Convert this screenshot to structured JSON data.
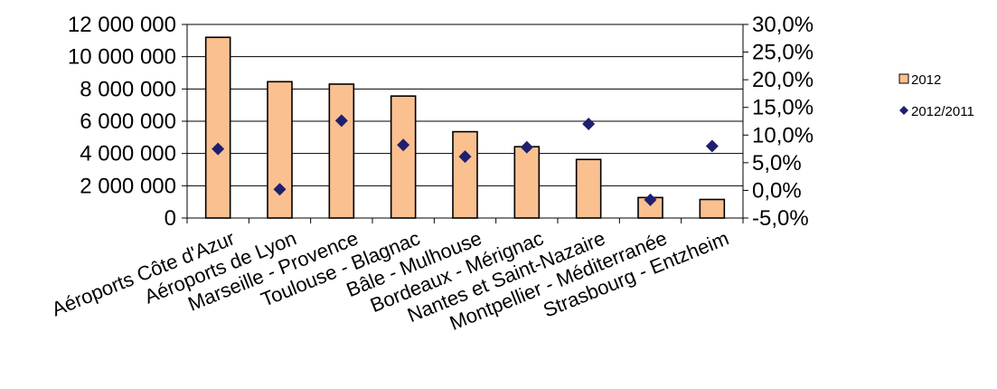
{
  "chart_data": {
    "type": "bar",
    "categories": [
      "Aéroports Côte d'Azur",
      "Aéroports de Lyon",
      "Marseille - Provence",
      "Toulouse - Blagnac",
      "Bâle - Mulhouse",
      "Bordeaux - Mérignac",
      "Nantes et Saint-Nazaire",
      "Montpellier - Méditerranée",
      "Strasbourg - Entzheim"
    ],
    "series": [
      {
        "name": "2012",
        "type": "bar",
        "axis": "left",
        "color": "#FAC090",
        "values": [
          11200000,
          8450000,
          8300000,
          7560000,
          5350000,
          4420000,
          3630000,
          1270000,
          1150000
        ]
      },
      {
        "name": "2012/2011",
        "type": "scatter",
        "axis": "right",
        "marker": "diamond",
        "color": "#1F1F6E",
        "values": [
          7.5,
          0.2,
          12.6,
          8.2,
          6.1,
          7.8,
          12.0,
          -1.7,
          8.0
        ]
      }
    ],
    "y_left": {
      "ylim": [
        0,
        12000000
      ],
      "ticks": [
        0,
        2000000,
        4000000,
        6000000,
        8000000,
        10000000,
        12000000
      ],
      "tick_labels": [
        "0",
        "2 000 000",
        "4 000 000",
        "6 000 000",
        "8 000 000",
        "10 000 000",
        "12 000 000"
      ]
    },
    "y_right": {
      "ylim": [
        -5,
        30
      ],
      "ticks": [
        -5,
        0,
        5,
        10,
        15,
        20,
        25,
        30
      ],
      "tick_labels": [
        "-5,0%",
        "0,0%",
        "5,0%",
        "10,0%",
        "15,0%",
        "20,0%",
        "25,0%",
        "30,0%"
      ]
    },
    "grid": true,
    "legend": {
      "placement": "right",
      "entries": [
        "2012",
        "2012/2011"
      ]
    },
    "title": "",
    "xlabel": "",
    "ylabel": ""
  }
}
